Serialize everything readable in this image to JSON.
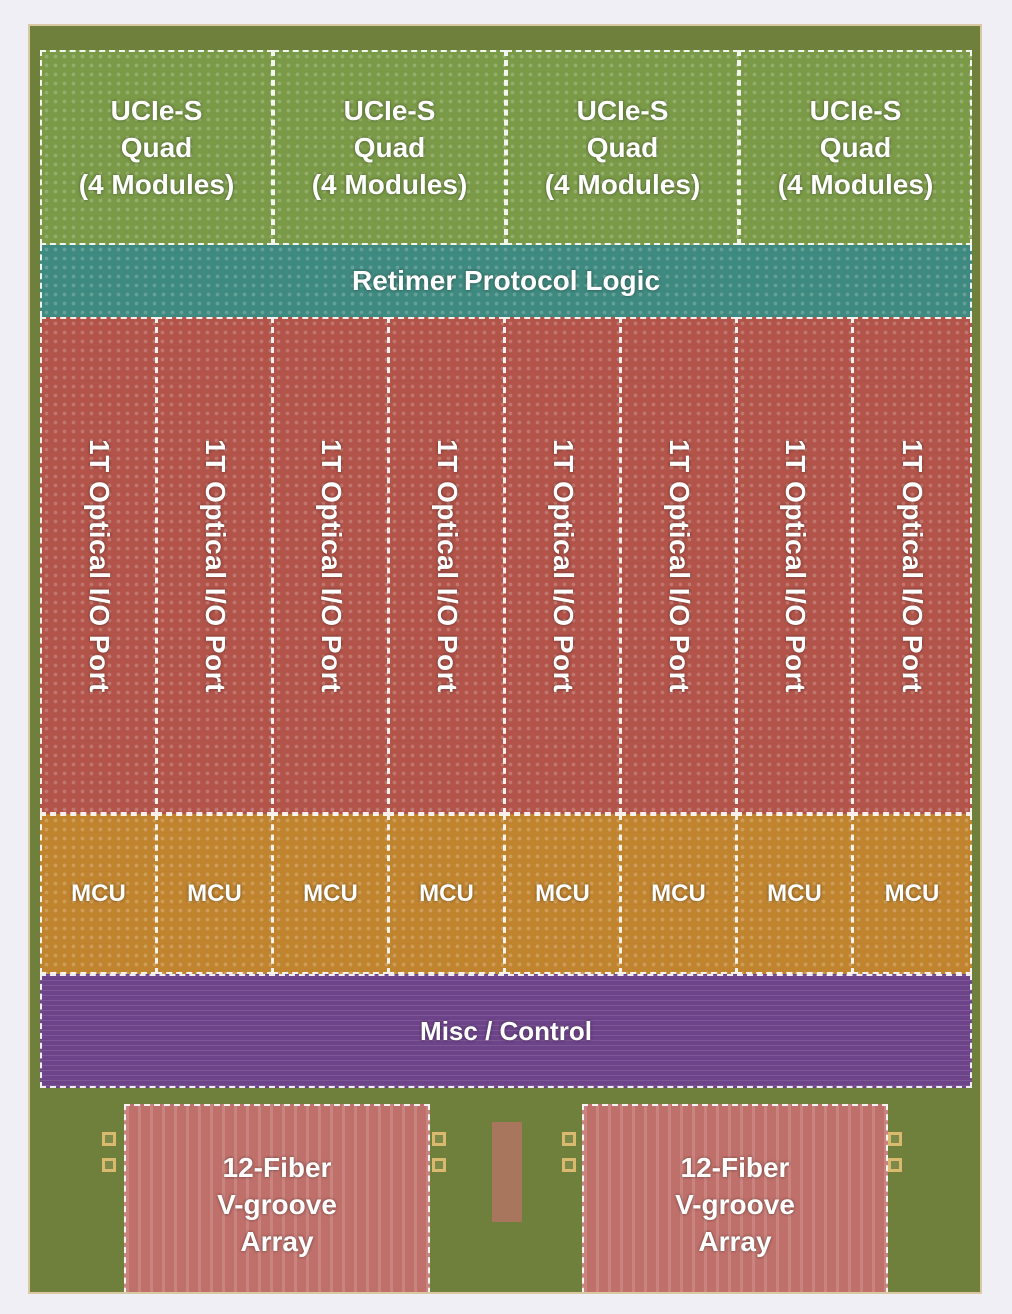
{
  "ucie_blocks": [
    {
      "label": "UCIe-S\nQuad\n(4 Modules)"
    },
    {
      "label": "UCIe-S\nQuad\n(4 Modules)"
    },
    {
      "label": "UCIe-S\nQuad\n(4 Modules)"
    },
    {
      "label": "UCIe-S\nQuad\n(4 Modules)"
    }
  ],
  "retimer": {
    "label": "Retimer Protocol Logic"
  },
  "optical_ports": [
    {
      "label": "1T Optical I/O Port"
    },
    {
      "label": "1T Optical I/O Port"
    },
    {
      "label": "1T Optical I/O Port"
    },
    {
      "label": "1T Optical I/O Port"
    },
    {
      "label": "1T Optical I/O Port"
    },
    {
      "label": "1T Optical I/O Port"
    },
    {
      "label": "1T Optical I/O Port"
    },
    {
      "label": "1T Optical I/O Port"
    }
  ],
  "mcus": [
    {
      "label": "MCU"
    },
    {
      "label": "MCU"
    },
    {
      "label": "MCU"
    },
    {
      "label": "MCU"
    },
    {
      "label": "MCU"
    },
    {
      "label": "MCU"
    },
    {
      "label": "MCU"
    },
    {
      "label": "MCU"
    }
  ],
  "misc": {
    "label": "Misc / Control"
  },
  "fiber_arrays": [
    {
      "label": "12-Fiber\nV-groove\nArray"
    },
    {
      "label": "12-Fiber\nV-groove\nArray"
    }
  ],
  "colors": {
    "ucie": "#7a9a48",
    "retimer": "#3f8a80",
    "port": "#b2544a",
    "mcu": "#c0842f",
    "misc": "#6d4389",
    "fiber": "#c0706a",
    "substrate": "#6f7f3c"
  }
}
